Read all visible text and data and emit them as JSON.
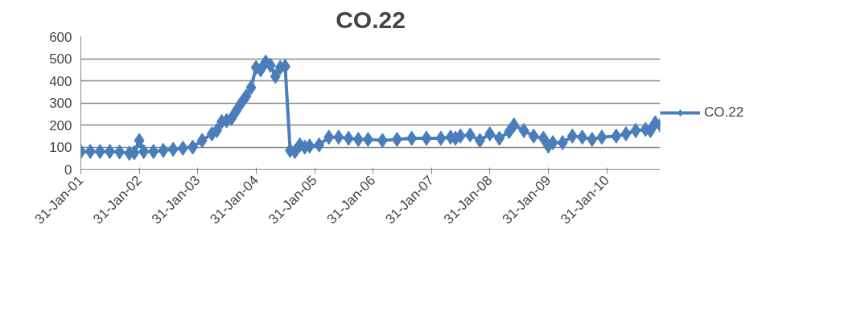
{
  "chart_data": {
    "type": "line",
    "title": "CO.22",
    "x": [
      "2001-01-31",
      "2001-03-31",
      "2001-05-31",
      "2001-07-31",
      "2001-09-30",
      "2001-11-30",
      "2001-12-31",
      "2002-01-31",
      "2002-02-28",
      "2002-04-30",
      "2002-06-30",
      "2002-08-31",
      "2002-10-31",
      "2002-12-31",
      "2003-02-28",
      "2003-04-30",
      "2003-05-31",
      "2003-06-30",
      "2003-07-31",
      "2003-08-31",
      "2003-09-30",
      "2003-10-31",
      "2003-11-30",
      "2003-12-31",
      "2004-01-31",
      "2004-02-29",
      "2004-03-31",
      "2004-04-30",
      "2004-05-31",
      "2004-06-30",
      "2004-07-31",
      "2004-08-31",
      "2004-09-30",
      "2004-10-31",
      "2004-11-30",
      "2004-12-31",
      "2005-02-28",
      "2005-04-30",
      "2005-06-30",
      "2005-08-31",
      "2005-10-31",
      "2005-12-31",
      "2006-03-31",
      "2006-06-30",
      "2006-09-30",
      "2006-12-31",
      "2007-03-31",
      "2007-05-31",
      "2007-06-30",
      "2007-07-31",
      "2007-09-30",
      "2007-11-30",
      "2008-01-31",
      "2008-03-31",
      "2008-05-31",
      "2008-06-30",
      "2008-08-31",
      "2008-10-31",
      "2008-12-31",
      "2009-01-31",
      "2009-02-28",
      "2009-04-30",
      "2009-06-30",
      "2009-08-31",
      "2009-10-31",
      "2009-12-31",
      "2010-03-31",
      "2010-05-31",
      "2010-07-31",
      "2010-09-30",
      "2010-10-31",
      "2010-11-30",
      "2010-12-31"
    ],
    "series": [
      {
        "name": "CO.22",
        "color": "#4a7ebb",
        "values": [
          80,
          80,
          80,
          80,
          78,
          72,
          75,
          130,
          80,
          80,
          85,
          90,
          95,
          100,
          130,
          160,
          175,
          215,
          220,
          230,
          265,
          300,
          330,
          370,
          460,
          450,
          485,
          470,
          420,
          460,
          465,
          85,
          80,
          110,
          100,
          105,
          110,
          145,
          145,
          140,
          135,
          135,
          130,
          135,
          140,
          140,
          140,
          145,
          140,
          150,
          155,
          130,
          160,
          140,
          170,
          200,
          175,
          150,
          140,
          105,
          120,
          120,
          150,
          145,
          135,
          145,
          150,
          160,
          175,
          180,
          175,
          210,
          200
        ]
      }
    ],
    "ylim": [
      0,
      600
    ],
    "yticks": [
      0,
      100,
      200,
      300,
      400,
      500,
      600
    ],
    "xlim": [
      "2001-01-31",
      "2010-12-31"
    ],
    "xticks": [
      {
        "value": "2001-01-31",
        "label": "31-Jan-01"
      },
      {
        "value": "2002-01-31",
        "label": "31-Jan-02"
      },
      {
        "value": "2003-01-31",
        "label": "31-Jan-03"
      },
      {
        "value": "2004-01-31",
        "label": "31-Jan-04"
      },
      {
        "value": "2005-01-31",
        "label": "31-Jan-05"
      },
      {
        "value": "2006-01-31",
        "label": "31-Jan-06"
      },
      {
        "value": "2007-01-31",
        "label": "31-Jan-07"
      },
      {
        "value": "2008-01-31",
        "label": "31-Jan-08"
      },
      {
        "value": "2009-01-31",
        "label": "31-Jan-09"
      },
      {
        "value": "2010-01-31",
        "label": "31-Jan-10"
      }
    ],
    "grid": "y",
    "legend": "right",
    "marker": "diamond",
    "line_style": "solid"
  }
}
